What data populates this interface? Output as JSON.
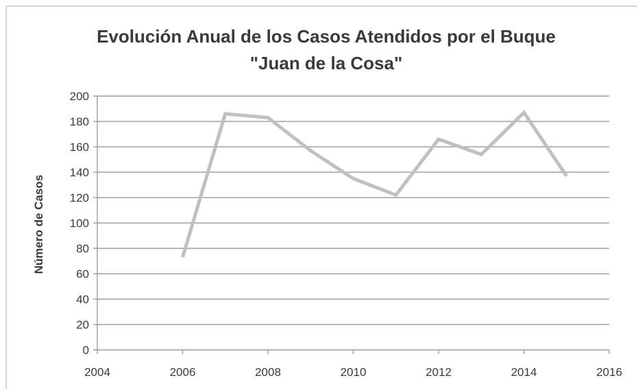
{
  "chart_data": {
    "type": "line",
    "title_lines": [
      "Evolución Anual de los Casos Atendidos por el Buque",
      "\"Juan de la Cosa\""
    ],
    "xlabel": "",
    "ylabel": "Número de Casos",
    "xlim": [
      2004,
      2016
    ],
    "ylim": [
      0,
      200
    ],
    "x_ticks": [
      2004,
      2006,
      2008,
      2010,
      2012,
      2014,
      2016
    ],
    "y_ticks": [
      0,
      20,
      40,
      60,
      80,
      100,
      120,
      140,
      160,
      180,
      200
    ],
    "grid": "horizontal",
    "legend": "none",
    "series": [
      {
        "x": [
          2006,
          2007,
          2008,
          2009,
          2010,
          2011,
          2012,
          2013,
          2014,
          2015
        ],
        "values": [
          73,
          186,
          183,
          157,
          135,
          122,
          166,
          154,
          187,
          137
        ],
        "color": "#c0c0c0"
      }
    ]
  }
}
